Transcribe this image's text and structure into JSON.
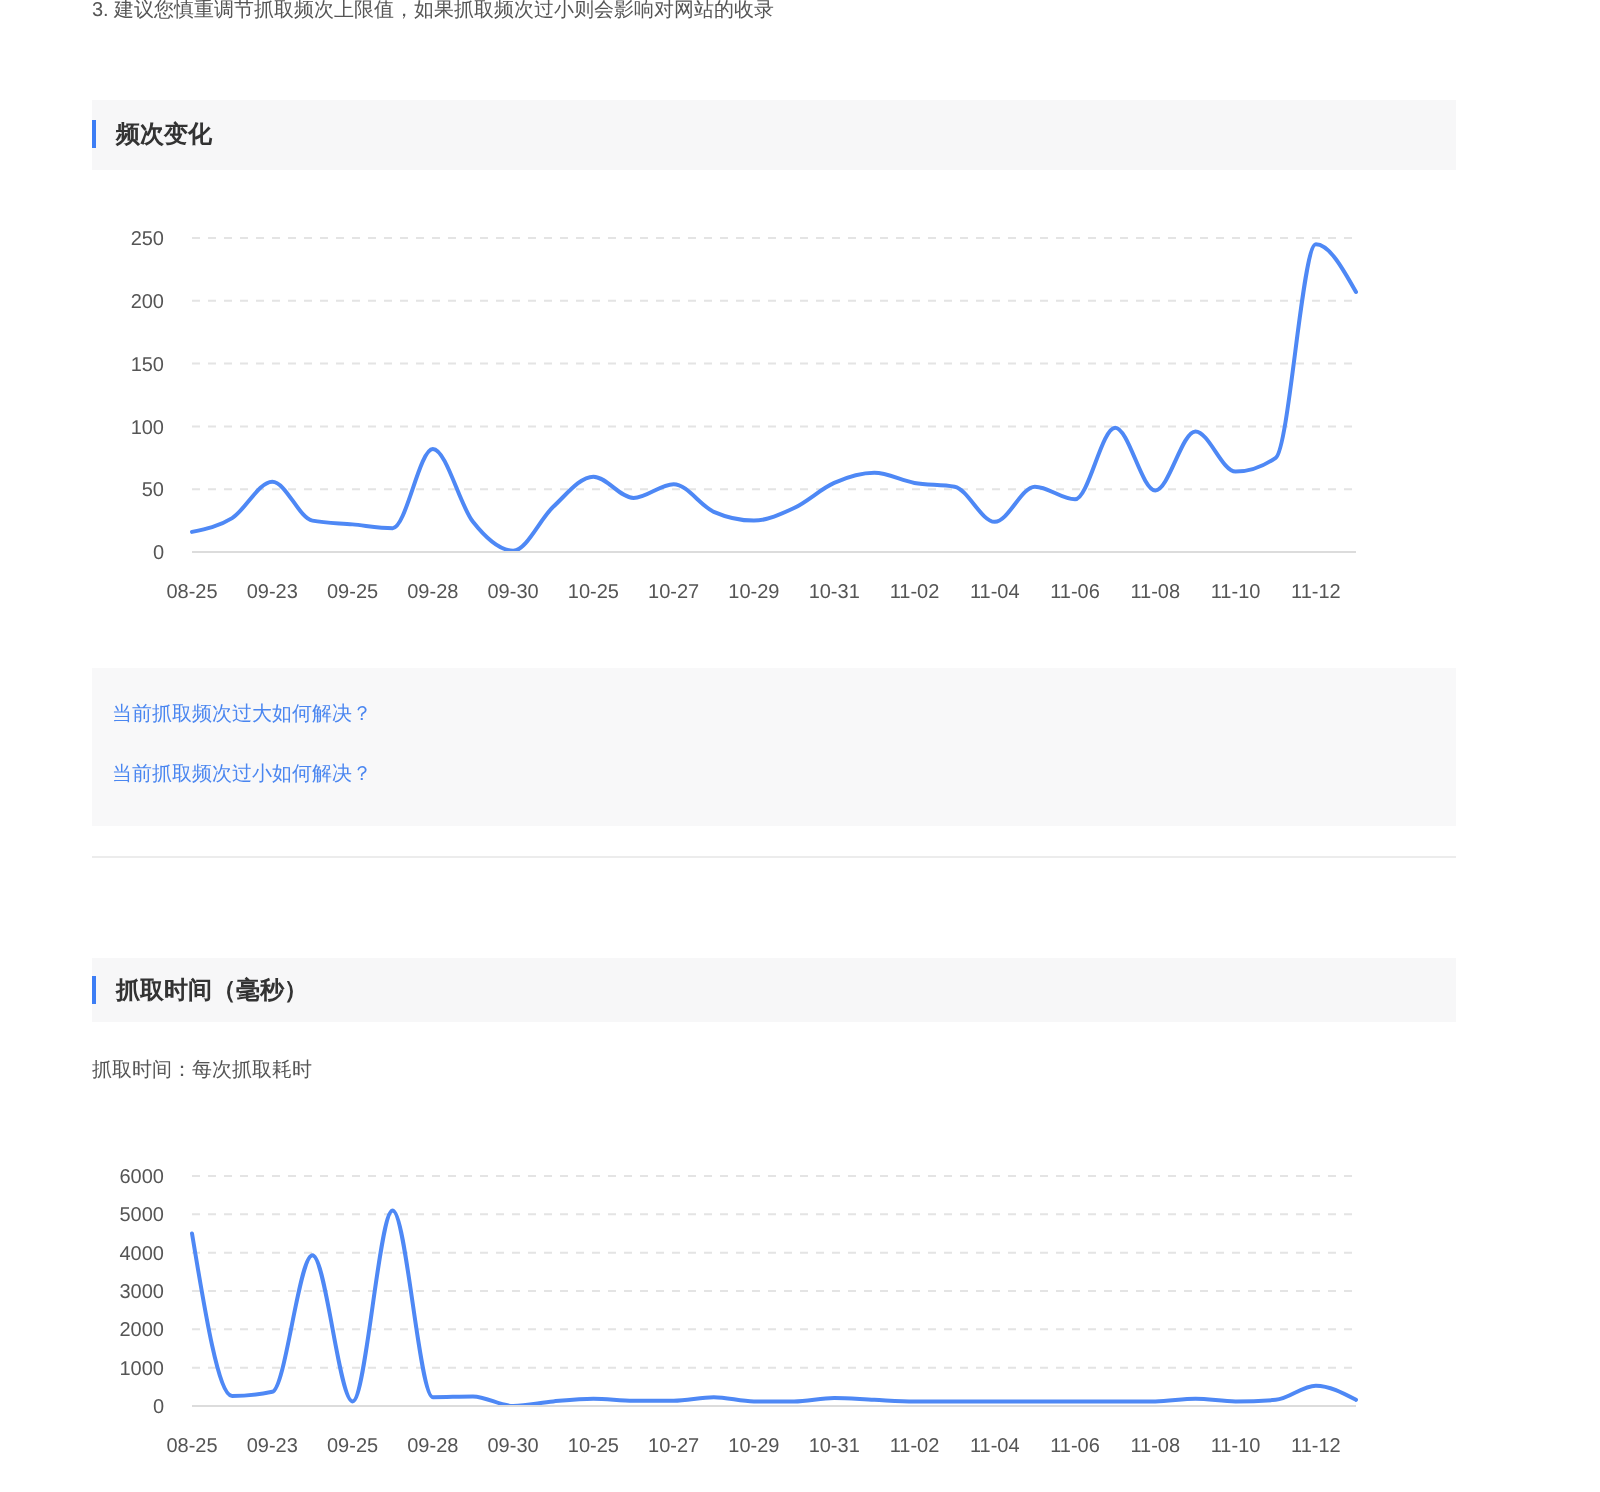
{
  "chart_data": [
    {
      "type": "line",
      "title": "频次变化",
      "annotations": [
        "3. 建议您慎重调节抓取频次上限值，如果抓取频次过小则会影响对网站的收录",
        "当前抓取频次过大如何解决？",
        "当前抓取频次过小如何解决？"
      ],
      "categories": [
        "08-25",
        null,
        "09-23",
        null,
        "09-25",
        null,
        "09-28",
        null,
        "09-30",
        null,
        "10-25",
        null,
        "10-27",
        null,
        "10-29",
        null,
        "10-31",
        null,
        "11-02",
        null,
        "11-04",
        null,
        "11-06",
        null,
        "11-08",
        null,
        "11-10",
        null,
        "11-12",
        null
      ],
      "values": [
        16,
        27,
        56,
        25,
        22,
        19,
        82,
        24,
        1,
        36,
        60,
        43,
        54,
        32,
        25,
        35,
        55,
        63,
        55,
        52,
        24,
        52,
        42,
        99,
        49,
        96,
        64,
        75,
        245,
        207
      ],
      "color": "#4e88f5",
      "ylim": [
        0,
        250
      ],
      "yticks": [
        0,
        50,
        100,
        150,
        200,
        250
      ],
      "grid": "y"
    },
    {
      "type": "line",
      "title": "抓取时间（毫秒）",
      "subtitle": "抓取时间：每次抓取耗时",
      "categories": [
        "08-25",
        null,
        "09-23",
        null,
        "09-25",
        null,
        "09-28",
        null,
        "09-30",
        null,
        "10-25",
        null,
        "10-27",
        null,
        "10-29",
        null,
        "10-31",
        null,
        "11-02",
        null,
        "11-04",
        null,
        "11-06",
        null,
        "11-08",
        null,
        "11-10",
        null,
        "11-12",
        null
      ],
      "values": [
        4500,
        260,
        370,
        3930,
        120,
        5100,
        230,
        250,
        0,
        120,
        190,
        140,
        140,
        230,
        120,
        120,
        210,
        160,
        120,
        120,
        120,
        120,
        120,
        120,
        120,
        190,
        120,
        160,
        530,
        160
      ],
      "color": "#4e88f5",
      "ylim": [
        0,
        6000
      ],
      "yticks": [
        0,
        1000,
        2000,
        3000,
        4000,
        5000,
        6000
      ],
      "grid": "y"
    }
  ]
}
